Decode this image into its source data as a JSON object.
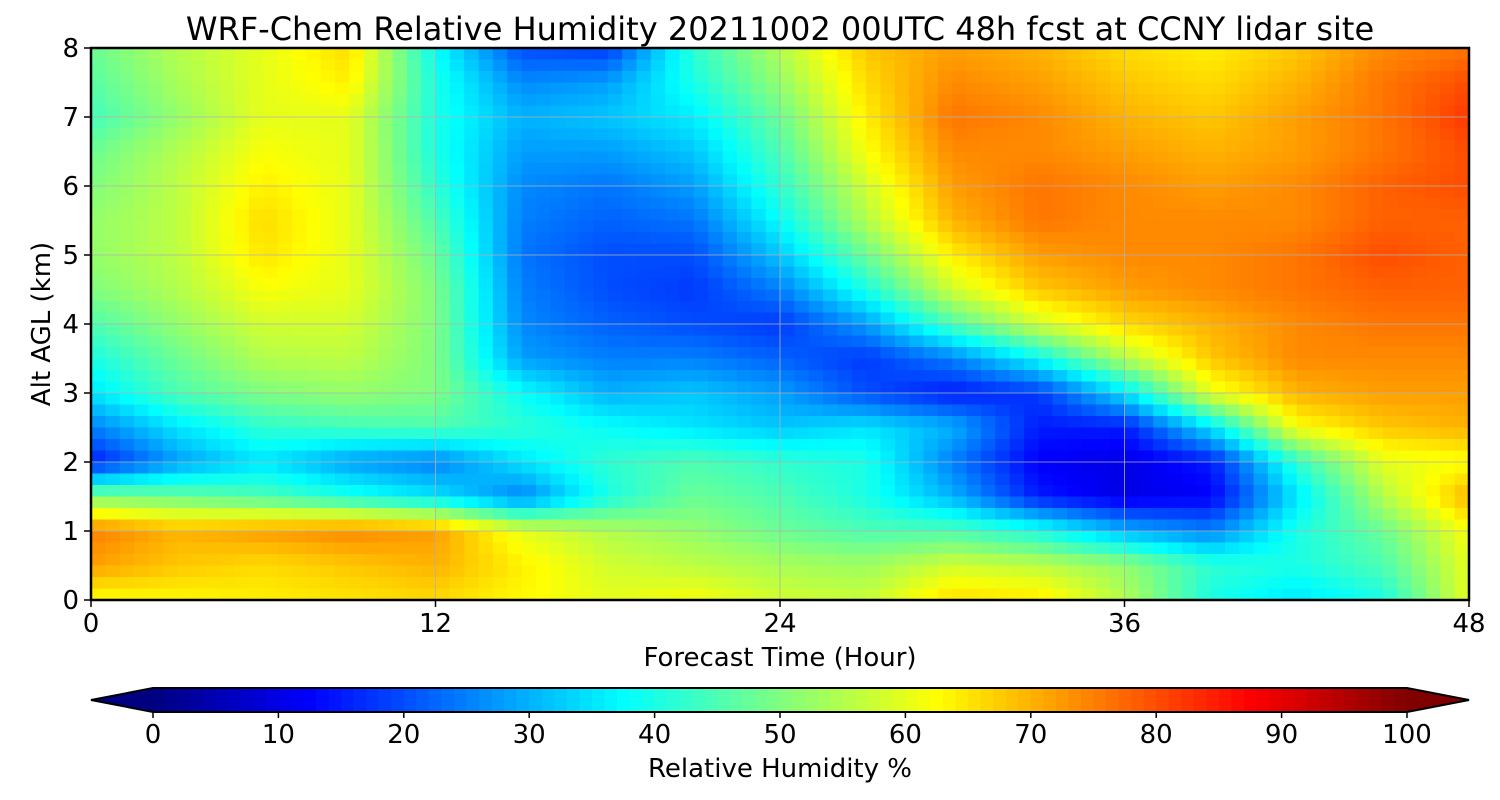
{
  "chart_data": {
    "type": "heatmap",
    "title": "WRF-Chem Relative Humidity 20211002 00UTC 48h fcst at CCNY lidar site",
    "xlabel": "Forecast Time (Hour)",
    "ylabel": "Alt AGL (km)",
    "xlim": [
      0,
      48
    ],
    "ylim": [
      0,
      8
    ],
    "x_ticks": [
      0,
      12,
      24,
      36,
      48
    ],
    "y_ticks": [
      0,
      1,
      2,
      3,
      4,
      5,
      6,
      7,
      8
    ],
    "grid": true,
    "colormap": "jet",
    "colorbar": {
      "label": "Relative Humidity %",
      "range": [
        0,
        100
      ],
      "ticks": [
        0,
        10,
        20,
        30,
        40,
        50,
        60,
        70,
        80,
        90,
        100
      ],
      "extend": "both",
      "orientation": "horizontal"
    },
    "x": [
      0,
      3,
      6,
      9,
      12,
      15,
      18,
      21,
      24,
      27,
      30,
      33,
      36,
      39,
      42,
      45,
      48
    ],
    "y": [
      0,
      0.5,
      1,
      1.5,
      2,
      2.5,
      3,
      3.5,
      4,
      4.5,
      5,
      5.5,
      6,
      6.5,
      7,
      7.5,
      8
    ],
    "values": [
      [
        62,
        63,
        64,
        65,
        66,
        63,
        60,
        62,
        58,
        57,
        66,
        65,
        55,
        40,
        35,
        40,
        60
      ],
      [
        72,
        68,
        66,
        68,
        70,
        64,
        58,
        56,
        54,
        53,
        58,
        56,
        52,
        42,
        40,
        45,
        60
      ],
      [
        75,
        70,
        72,
        74,
        72,
        60,
        55,
        52,
        48,
        45,
        45,
        40,
        30,
        25,
        40,
        48,
        62
      ],
      [
        50,
        48,
        45,
        40,
        35,
        25,
        40,
        48,
        45,
        40,
        30,
        15,
        10,
        12,
        35,
        55,
        70
      ],
      [
        15,
        28,
        35,
        28,
        25,
        35,
        42,
        45,
        42,
        40,
        25,
        12,
        10,
        15,
        42,
        60,
        62
      ],
      [
        25,
        35,
        42,
        44,
        45,
        42,
        38,
        35,
        32,
        35,
        30,
        15,
        15,
        35,
        62,
        68,
        70
      ],
      [
        35,
        45,
        50,
        52,
        50,
        38,
        30,
        32,
        28,
        20,
        15,
        18,
        35,
        60,
        70,
        72,
        72
      ],
      [
        40,
        48,
        55,
        56,
        50,
        28,
        25,
        25,
        22,
        18,
        25,
        38,
        55,
        68,
        74,
        74,
        74
      ],
      [
        45,
        52,
        58,
        58,
        50,
        26,
        22,
        20,
        18,
        28,
        45,
        58,
        66,
        70,
        74,
        76,
        76
      ],
      [
        50,
        55,
        62,
        60,
        50,
        25,
        20,
        18,
        25,
        40,
        58,
        68,
        72,
        74,
        76,
        78,
        78
      ],
      [
        52,
        56,
        65,
        60,
        48,
        24,
        20,
        20,
        32,
        48,
        64,
        72,
        74,
        74,
        76,
        80,
        78
      ],
      [
        52,
        56,
        66,
        60,
        45,
        25,
        22,
        24,
        38,
        55,
        70,
        76,
        74,
        74,
        74,
        78,
        78
      ],
      [
        50,
        56,
        64,
        60,
        42,
        26,
        24,
        28,
        42,
        58,
        72,
        76,
        74,
        72,
        74,
        78,
        80
      ],
      [
        48,
        55,
        62,
        60,
        40,
        28,
        28,
        32,
        45,
        62,
        74,
        74,
        72,
        70,
        72,
        76,
        80
      ],
      [
        44,
        52,
        60,
        60,
        40,
        30,
        32,
        36,
        48,
        64,
        76,
        74,
        70,
        68,
        72,
        76,
        82
      ],
      [
        46,
        54,
        60,
        64,
        40,
        26,
        28,
        40,
        52,
        66,
        74,
        72,
        68,
        66,
        70,
        76,
        80
      ],
      [
        48,
        55,
        60,
        66,
        38,
        20,
        18,
        42,
        55,
        68,
        72,
        70,
        66,
        64,
        68,
        74,
        76
      ]
    ]
  }
}
